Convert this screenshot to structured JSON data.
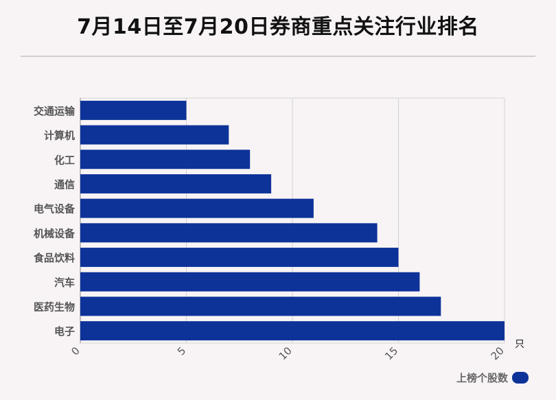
{
  "title": "7月14日至7月20日券商重点关注行业排名",
  "chart_data": {
    "type": "bar",
    "orientation": "horizontal",
    "title": "7月14日至7月20日券商重点关注行业排名",
    "categories": [
      "交通运输",
      "计算机",
      "化工",
      "通信",
      "电气设备",
      "机械设备",
      "食品饮料",
      "汽车",
      "医药生物",
      "电子"
    ],
    "series": [
      {
        "name": "上榜个股数",
        "values": [
          5,
          7,
          8,
          9,
          11,
          14,
          15,
          16,
          17,
          20
        ]
      }
    ],
    "xlim": [
      0,
      20
    ],
    "xticks": [
      0,
      5,
      10,
      15,
      20
    ],
    "xunit": "只",
    "grid": true,
    "legend": "bottom-right",
    "bar_color": "#0d3399"
  }
}
